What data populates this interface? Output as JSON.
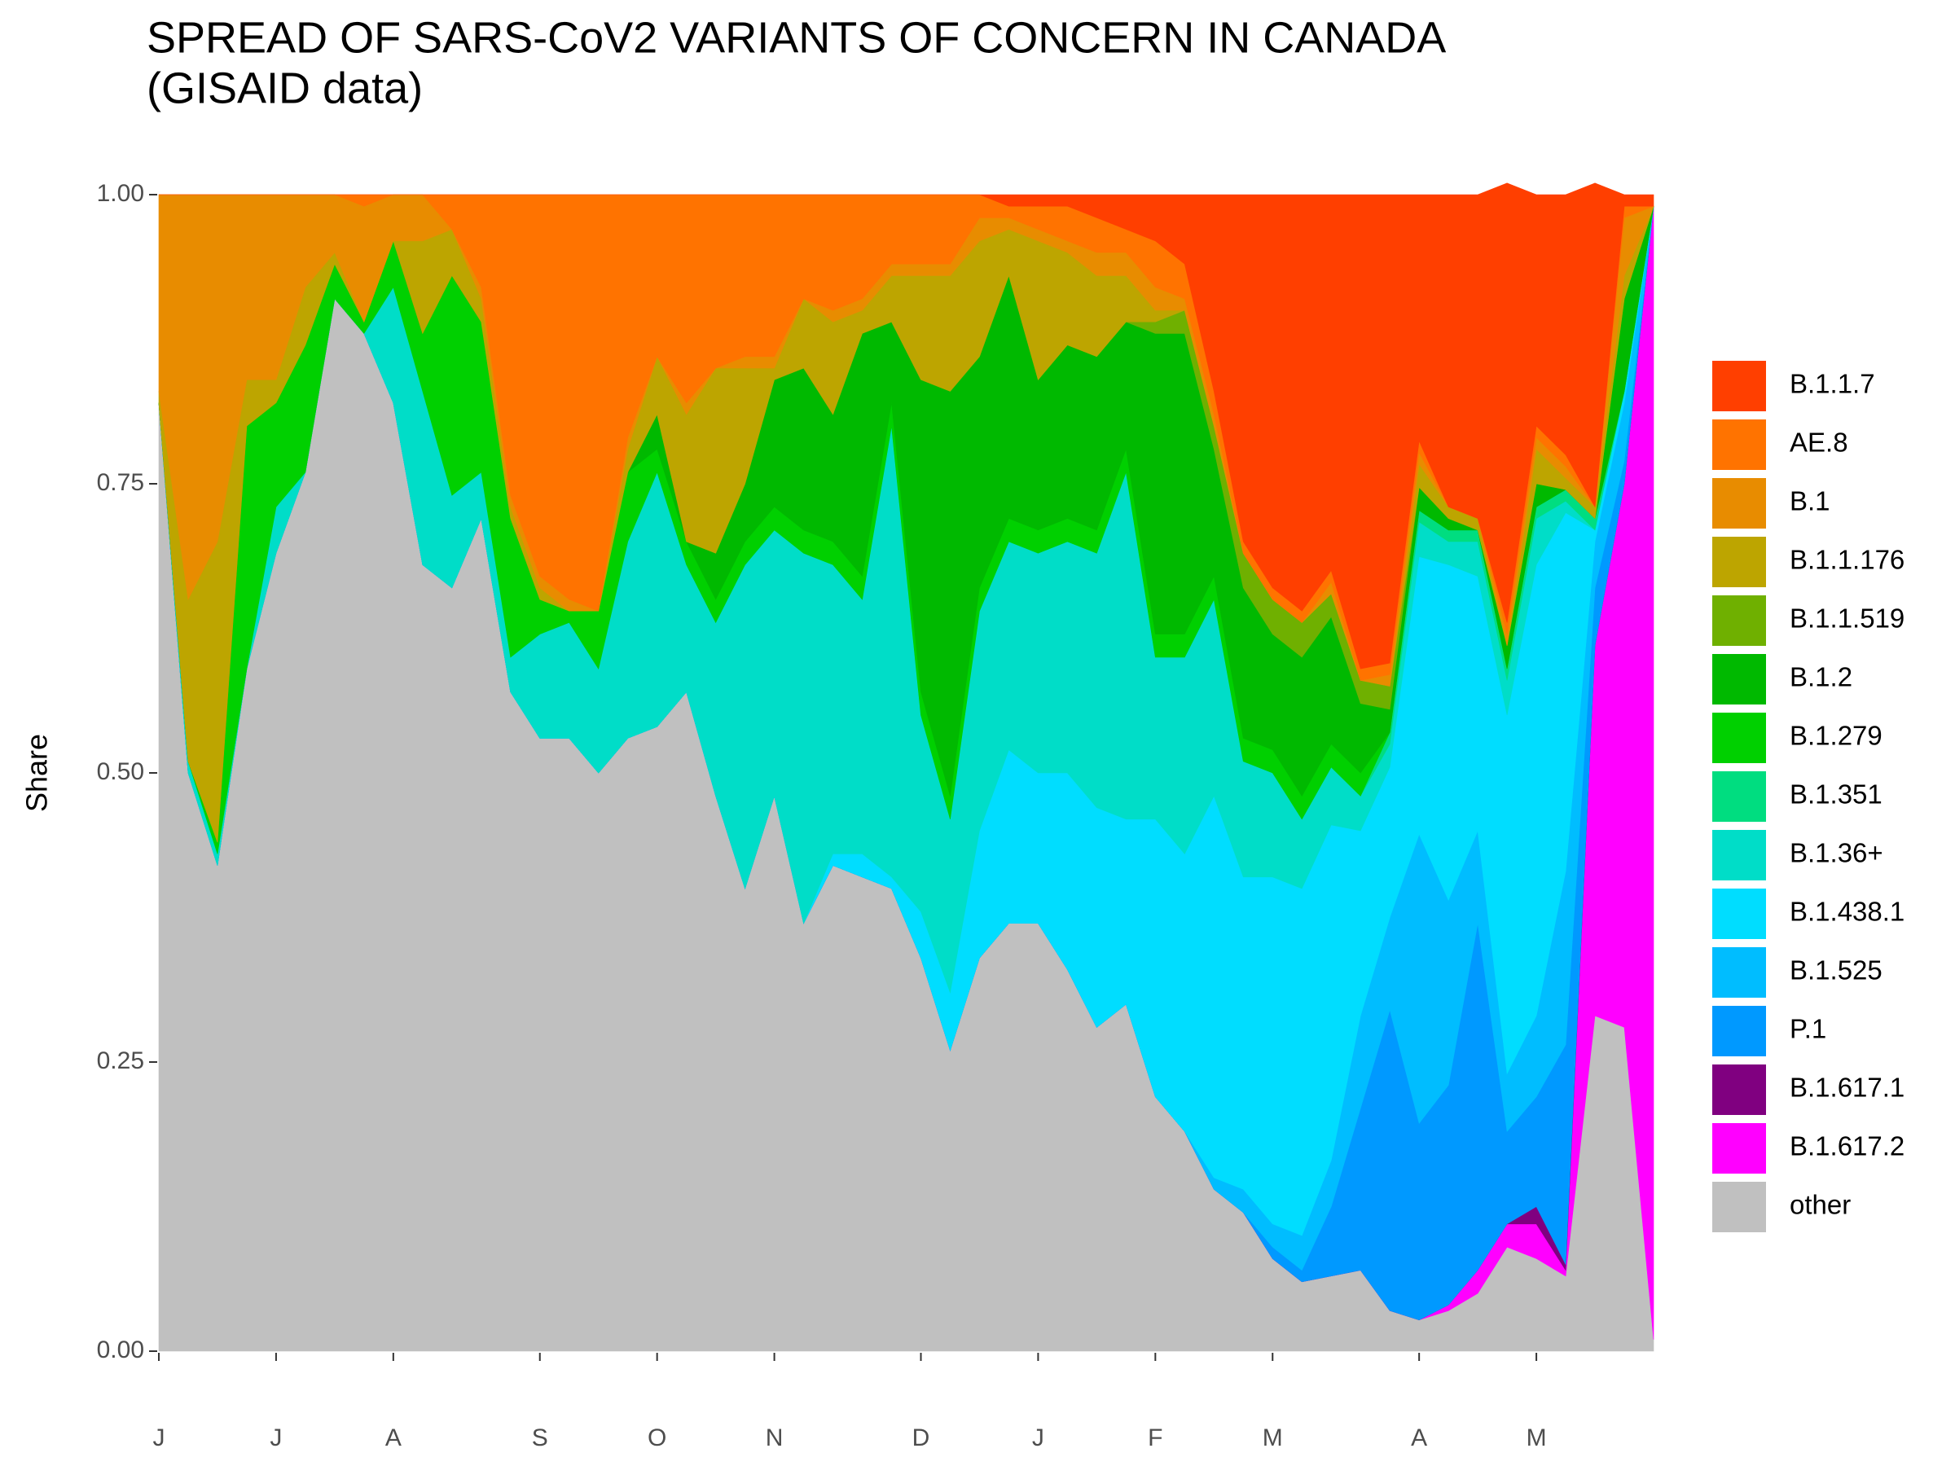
{
  "chart_data": {
    "type": "stacked_area",
    "title": [
      "SPREAD OF SARS-CoV2 VARIANTS OF CONCERN IN CANADA",
      "(GISAID data)"
    ],
    "y_label": "Share",
    "ylim": [
      0,
      1
    ],
    "yticks": [
      {
        "value": 0,
        "label": "0.00"
      },
      {
        "value": 0.25,
        "label": "0.25"
      },
      {
        "value": 0.5,
        "label": "0.50"
      },
      {
        "value": 0.75,
        "label": "0.75"
      },
      {
        "value": 1,
        "label": "1.00"
      }
    ],
    "grid": false,
    "legend": "right",
    "categories": [
      "J",
      null,
      null,
      null,
      "J",
      null,
      null,
      null,
      "A",
      null,
      null,
      null,
      null,
      "S",
      null,
      null,
      null,
      "O",
      null,
      null,
      null,
      "N",
      null,
      null,
      null,
      null,
      "D",
      null,
      null,
      null,
      "J",
      null,
      null,
      null,
      "F",
      null,
      null,
      null,
      "M",
      null,
      null,
      null,
      null,
      "A",
      null,
      null,
      null,
      "M",
      null,
      null,
      null,
      null
    ],
    "series": [
      {
        "name": "B.1.1.7",
        "color": "#ff3f00",
        "values": [
          0,
          0,
          0,
          0,
          0,
          0,
          0,
          0,
          0,
          0,
          0,
          0,
          0,
          0,
          0,
          0,
          0,
          0,
          0,
          0,
          0,
          0,
          0,
          0,
          0,
          0,
          0,
          0,
          0,
          0.01,
          0.01,
          0.01,
          0.02,
          0.03,
          0.04,
          0.06,
          0.17,
          0.3,
          0.34,
          0.36,
          0.325,
          0.41,
          0.405,
          0.213,
          0.27,
          0.28,
          0.38,
          0.2,
          0.225,
          0.28,
          0.01,
          0.01
        ]
      },
      {
        "name": "AE.8",
        "color": "#ff7300",
        "values": [
          0,
          0,
          0,
          0,
          0,
          0,
          0,
          0.01,
          0,
          0,
          0.03,
          0.08,
          0.26,
          0.33,
          0.35,
          0.36,
          0.21,
          0.14,
          0.18,
          0.15,
          0.14,
          0.14,
          0.09,
          0.1,
          0.09,
          0.06,
          0.06,
          0.06,
          0.02,
          0.01,
          0.02,
          0.03,
          0.03,
          0.02,
          0.04,
          0.03,
          0.02,
          0.01,
          0.01,
          0.01,
          0.01,
          0.01,
          0.01,
          0.01,
          0,
          0,
          0.01,
          0.01,
          0.01,
          0,
          0.01,
          0
        ]
      },
      {
        "name": "B.1",
        "color": "#e88c00",
        "values": [
          0.17,
          0.35,
          0.3,
          0.16,
          0.16,
          0.08,
          0.05,
          0.1,
          0.04,
          0.04,
          0,
          0.01,
          0.01,
          0.01,
          0.01,
          0,
          0.01,
          0,
          0.01,
          0,
          0.01,
          0.01,
          0,
          0.01,
          0.01,
          0.01,
          0.01,
          0.01,
          0.02,
          0.01,
          0.01,
          0.01,
          0.02,
          0.02,
          0.02,
          0.01,
          0.01,
          0,
          0,
          0,
          0.01,
          0,
          0.01,
          0.01,
          0,
          0,
          0.01,
          0.01,
          0.01,
          0,
          0.05,
          0
        ]
      },
      {
        "name": "B.1.1.176",
        "color": "#bda500",
        "values": [
          0.01,
          0.14,
          0.26,
          0.04,
          0.02,
          0.05,
          0.01,
          0,
          0,
          0.08,
          0.04,
          0.02,
          0.01,
          0.01,
          0,
          0,
          0.02,
          0.05,
          0.11,
          0.16,
          0.1,
          0.01,
          0.06,
          0.08,
          0.02,
          0.04,
          0.09,
          0.1,
          0.1,
          0.04,
          0.12,
          0.08,
          0.07,
          0.04,
          0.01,
          0,
          0,
          0,
          0,
          0,
          0,
          0,
          0,
          0.02,
          0.01,
          0.01,
          0,
          0.03,
          0.01,
          0.01,
          0.02,
          0
        ]
      },
      {
        "name": "B.1.1.519",
        "color": "#6fb000",
        "values": [
          0,
          0,
          0,
          0,
          0,
          0,
          0,
          0,
          0,
          0,
          0,
          0,
          0,
          0,
          0,
          0,
          0,
          0,
          0,
          0,
          0,
          0,
          0,
          0,
          0,
          0,
          0,
          0,
          0,
          0,
          0,
          0,
          0,
          0,
          0.01,
          0.02,
          0.02,
          0.03,
          0.03,
          0.03,
          0.02,
          0.02,
          0.02,
          0,
          0,
          0,
          0,
          0,
          0,
          0,
          0,
          0
        ]
      },
      {
        "name": "B.1.2",
        "color": "#00b900",
        "values": [
          0,
          0,
          0,
          0,
          0,
          0,
          0,
          0,
          0,
          0,
          0,
          0,
          0,
          0,
          0,
          0,
          0,
          0.03,
          0,
          0.04,
          0.05,
          0.11,
          0.14,
          0.11,
          0.21,
          0.07,
          0.27,
          0.35,
          0.2,
          0.21,
          0.13,
          0.15,
          0.15,
          0.11,
          0.26,
          0.26,
          0.11,
          0.13,
          0.1,
          0.12,
          0.11,
          0.06,
          0.02,
          0.02,
          0.01,
          0,
          0.02,
          0.02,
          0,
          0,
          0.08,
          0
        ]
      },
      {
        "name": "B.1.279",
        "color": "#00d000",
        "values": [
          0,
          0,
          0.01,
          0.21,
          0.09,
          0.11,
          0.03,
          0.01,
          0.04,
          0.05,
          0.19,
          0.13,
          0.12,
          0.03,
          0.01,
          0.05,
          0.06,
          0.02,
          0.02,
          0.02,
          0.02,
          0.02,
          0.02,
          0.02,
          0.02,
          0.02,
          0.02,
          0.02,
          0.02,
          0.02,
          0.02,
          0.02,
          0.02,
          0.02,
          0.02,
          0.02,
          0.02,
          0.02,
          0.02,
          0.02,
          0.02,
          0.02,
          0,
          0,
          0,
          0,
          0,
          0,
          0,
          0,
          0,
          0
        ]
      },
      {
        "name": "B.1.351",
        "color": "#00dd80",
        "values": [
          0,
          0,
          0,
          0,
          0,
          0,
          0,
          0,
          0,
          0,
          0,
          0,
          0,
          0,
          0,
          0,
          0,
          0,
          0,
          0,
          0,
          0,
          0,
          0,
          0,
          0,
          0,
          0,
          0,
          0,
          0,
          0,
          0,
          0,
          0,
          0,
          0,
          0,
          0,
          0,
          0,
          0,
          0.01,
          0.01,
          0.01,
          0.01,
          0.01,
          0.01,
          0.01,
          0.01,
          0,
          0
        ]
      },
      {
        "name": "B.1.36+",
        "color": "#00ddc8",
        "values": [
          0,
          0.01,
          0.01,
          0,
          0.04,
          0,
          0,
          0,
          0.1,
          0.15,
          0.08,
          0.04,
          0.03,
          0.09,
          0.1,
          0.09,
          0.17,
          0.22,
          0.11,
          0.15,
          0.28,
          0.23,
          0.32,
          0.25,
          0.22,
          0.39,
          0.17,
          0.15,
          0.19,
          0.18,
          0.19,
          0.2,
          0.22,
          0.3,
          0.14,
          0.17,
          0.17,
          0.1,
          0.09,
          0.06,
          0.05,
          0.03,
          0.02,
          0.03,
          0.02,
          0.03,
          0.03,
          0.04,
          0.01,
          0,
          0,
          0
        ]
      },
      {
        "name": "B.1.438.1",
        "color": "#00ddff",
        "values": [
          0,
          0,
          0,
          0,
          0,
          0,
          0,
          0,
          0,
          0,
          0,
          0,
          0,
          0,
          0,
          0,
          0,
          0,
          0,
          0,
          0,
          0,
          0,
          0.01,
          0.02,
          0.01,
          0.04,
          0.05,
          0.11,
          0.15,
          0.13,
          0.17,
          0.19,
          0.16,
          0.24,
          0.24,
          0.33,
          0.27,
          0.3,
          0.3,
          0.29,
          0.16,
          0.13,
          0.24,
          0.29,
          0.22,
          0.31,
          0.39,
          0.31,
          0.01,
          0.01,
          0
        ]
      },
      {
        "name": "B.1.525",
        "color": "#00bdff",
        "values": [
          0,
          0,
          0,
          0,
          0,
          0,
          0,
          0,
          0,
          0,
          0,
          0,
          0,
          0,
          0,
          0,
          0,
          0,
          0,
          0,
          0,
          0,
          0,
          0,
          0,
          0,
          0,
          0,
          0,
          0,
          0,
          0,
          0,
          0,
          0,
          0,
          0.01,
          0.02,
          0.02,
          0.03,
          0.04,
          0.08,
          0.08,
          0.25,
          0.16,
          0.08,
          0.05,
          0.07,
          0.15,
          0.04,
          0.05,
          0
        ]
      },
      {
        "name": "P.1",
        "color": "#0099ff",
        "values": [
          0,
          0,
          0,
          0,
          0,
          0,
          0,
          0,
          0,
          0,
          0,
          0,
          0,
          0,
          0,
          0,
          0,
          0,
          0,
          0,
          0,
          0,
          0,
          0,
          0,
          0,
          0,
          0,
          0,
          0,
          0,
          0,
          0,
          0,
          0,
          0,
          0,
          0,
          0.01,
          0.01,
          0.06,
          0.14,
          0.26,
          0.17,
          0.19,
          0.3,
          0.08,
          0.095,
          0.19,
          0.05,
          0.02,
          0
        ]
      },
      {
        "name": "B.1.617.1",
        "color": "#800080",
        "values": [
          0,
          0,
          0,
          0,
          0,
          0,
          0,
          0,
          0,
          0,
          0,
          0,
          0,
          0,
          0,
          0,
          0,
          0,
          0,
          0,
          0,
          0,
          0,
          0,
          0,
          0,
          0,
          0,
          0,
          0,
          0,
          0,
          0,
          0,
          0,
          0,
          0,
          0,
          0,
          0,
          0,
          0,
          0,
          0,
          0,
          0,
          0,
          0.015,
          0.005,
          0,
          0,
          0
        ]
      },
      {
        "name": "B.1.617.2",
        "color": "#ff00ff",
        "values": [
          0,
          0,
          0,
          0,
          0,
          0,
          0,
          0,
          0,
          0,
          0,
          0,
          0,
          0,
          0,
          0,
          0,
          0,
          0,
          0,
          0,
          0,
          0,
          0,
          0,
          0,
          0,
          0,
          0,
          0,
          0,
          0,
          0,
          0,
          0,
          0,
          0,
          0,
          0,
          0,
          0,
          0,
          0,
          0,
          0.005,
          0.02,
          0.02,
          0.03,
          0.005,
          0.32,
          0.47,
          0.98
        ]
      },
      {
        "name": "other",
        "color": "#c0c0c0",
        "values": [
          0.82,
          0.5,
          0.42,
          0.59,
          0.69,
          0.76,
          0.91,
          0.88,
          0.82,
          0.68,
          0.66,
          0.72,
          0.57,
          0.53,
          0.53,
          0.5,
          0.53,
          0.54,
          0.57,
          0.48,
          0.4,
          0.48,
          0.37,
          0.42,
          0.41,
          0.4,
          0.34,
          0.26,
          0.34,
          0.37,
          0.37,
          0.33,
          0.28,
          0.3,
          0.22,
          0.19,
          0.14,
          0.12,
          0.08,
          0.06,
          0.065,
          0.07,
          0.035,
          0.027,
          0.035,
          0.05,
          0.09,
          0.08,
          0.065,
          0.29,
          0.28,
          0.01
        ]
      }
    ]
  }
}
